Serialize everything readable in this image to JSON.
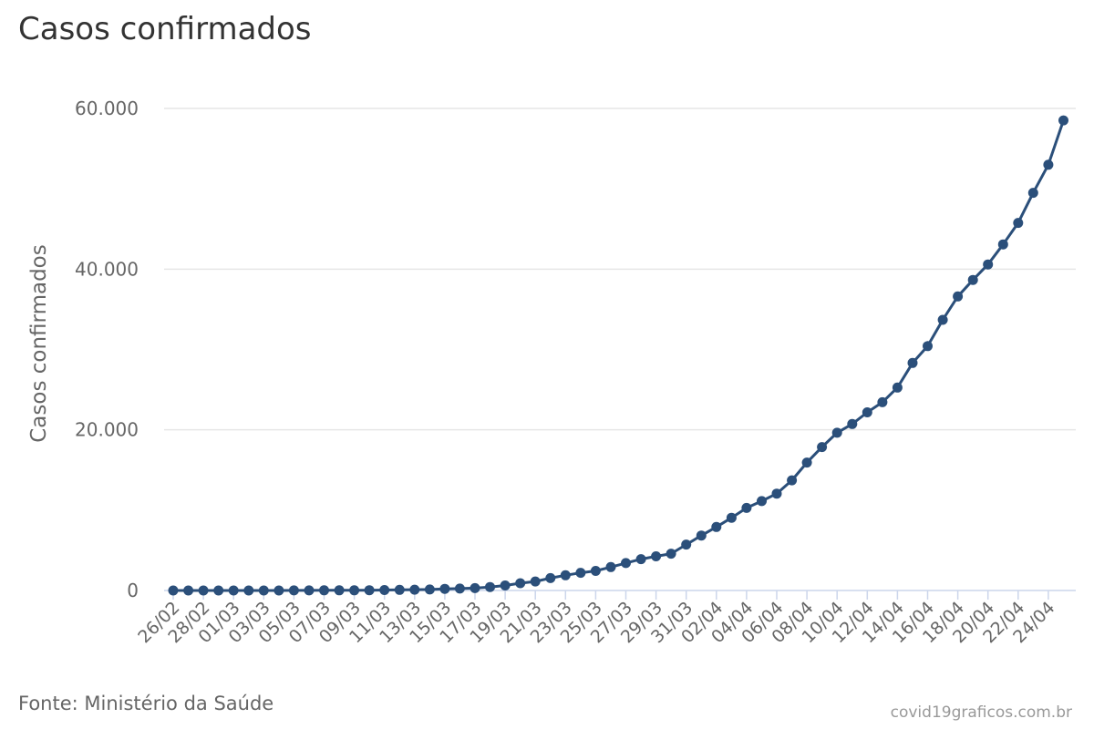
{
  "title": "Casos confirmados",
  "source": "Fonte: Ministério da Saúde",
  "credit": "covid19graficos.com.br",
  "chart_data": {
    "type": "line",
    "title": "Casos confirmados",
    "xlabel": "",
    "ylabel": "Casos confirmados",
    "ylim": [
      0,
      60000
    ],
    "y_ticks": [
      "0",
      "20.000",
      "40.000",
      "60.000"
    ],
    "y_tick_values": [
      0,
      20000,
      40000,
      60000
    ],
    "x_tick_labels": [
      "26/02",
      "28/02",
      "01/03",
      "03/03",
      "05/03",
      "07/03",
      "09/03",
      "11/03",
      "13/03",
      "15/03",
      "17/03",
      "19/03",
      "21/03",
      "23/03",
      "25/03",
      "27/03",
      "29/03",
      "31/03",
      "02/04",
      "04/04",
      "06/04",
      "08/04",
      "10/04",
      "12/04",
      "14/04",
      "16/04",
      "18/04",
      "20/04",
      "22/04",
      "24/04"
    ],
    "x": [
      "26/02",
      "27/02",
      "28/02",
      "29/02",
      "01/03",
      "02/03",
      "03/03",
      "04/03",
      "05/03",
      "06/03",
      "07/03",
      "08/03",
      "09/03",
      "10/03",
      "11/03",
      "12/03",
      "13/03",
      "14/03",
      "15/03",
      "16/03",
      "17/03",
      "18/03",
      "19/03",
      "20/03",
      "21/03",
      "22/03",
      "23/03",
      "24/03",
      "25/03",
      "26/03",
      "27/03",
      "28/03",
      "29/03",
      "30/03",
      "31/03",
      "01/04",
      "02/04",
      "03/04",
      "04/04",
      "05/04",
      "06/04",
      "07/04",
      "08/04",
      "09/04",
      "10/04",
      "11/04",
      "12/04",
      "13/04",
      "14/04",
      "15/04",
      "16/04",
      "17/04",
      "18/04",
      "19/04",
      "20/04",
      "21/04",
      "22/04",
      "23/04",
      "24/04",
      "25/04"
    ],
    "series": [
      {
        "color": "#2b4f7a",
        "values": [
          1,
          1,
          1,
          2,
          2,
          2,
          2,
          3,
          8,
          13,
          19,
          25,
          25,
          34,
          52,
          77,
          98,
          121,
          200,
          234,
          291,
          428,
          621,
          904,
          1128,
          1546,
          1891,
          2201,
          2433,
          2915,
          3417,
          3904,
          4256,
          4579,
          5717,
          6836,
          7910,
          9056,
          10278,
          11130,
          12056,
          13717,
          15927,
          17857,
          19638,
          20727,
          22169,
          23430,
          25262,
          28320,
          30425,
          33682,
          36599,
          38654,
          40581,
          43079,
          45757,
          49492,
          52995,
          58509
        ]
      }
    ],
    "grid": true,
    "legend": "none"
  }
}
